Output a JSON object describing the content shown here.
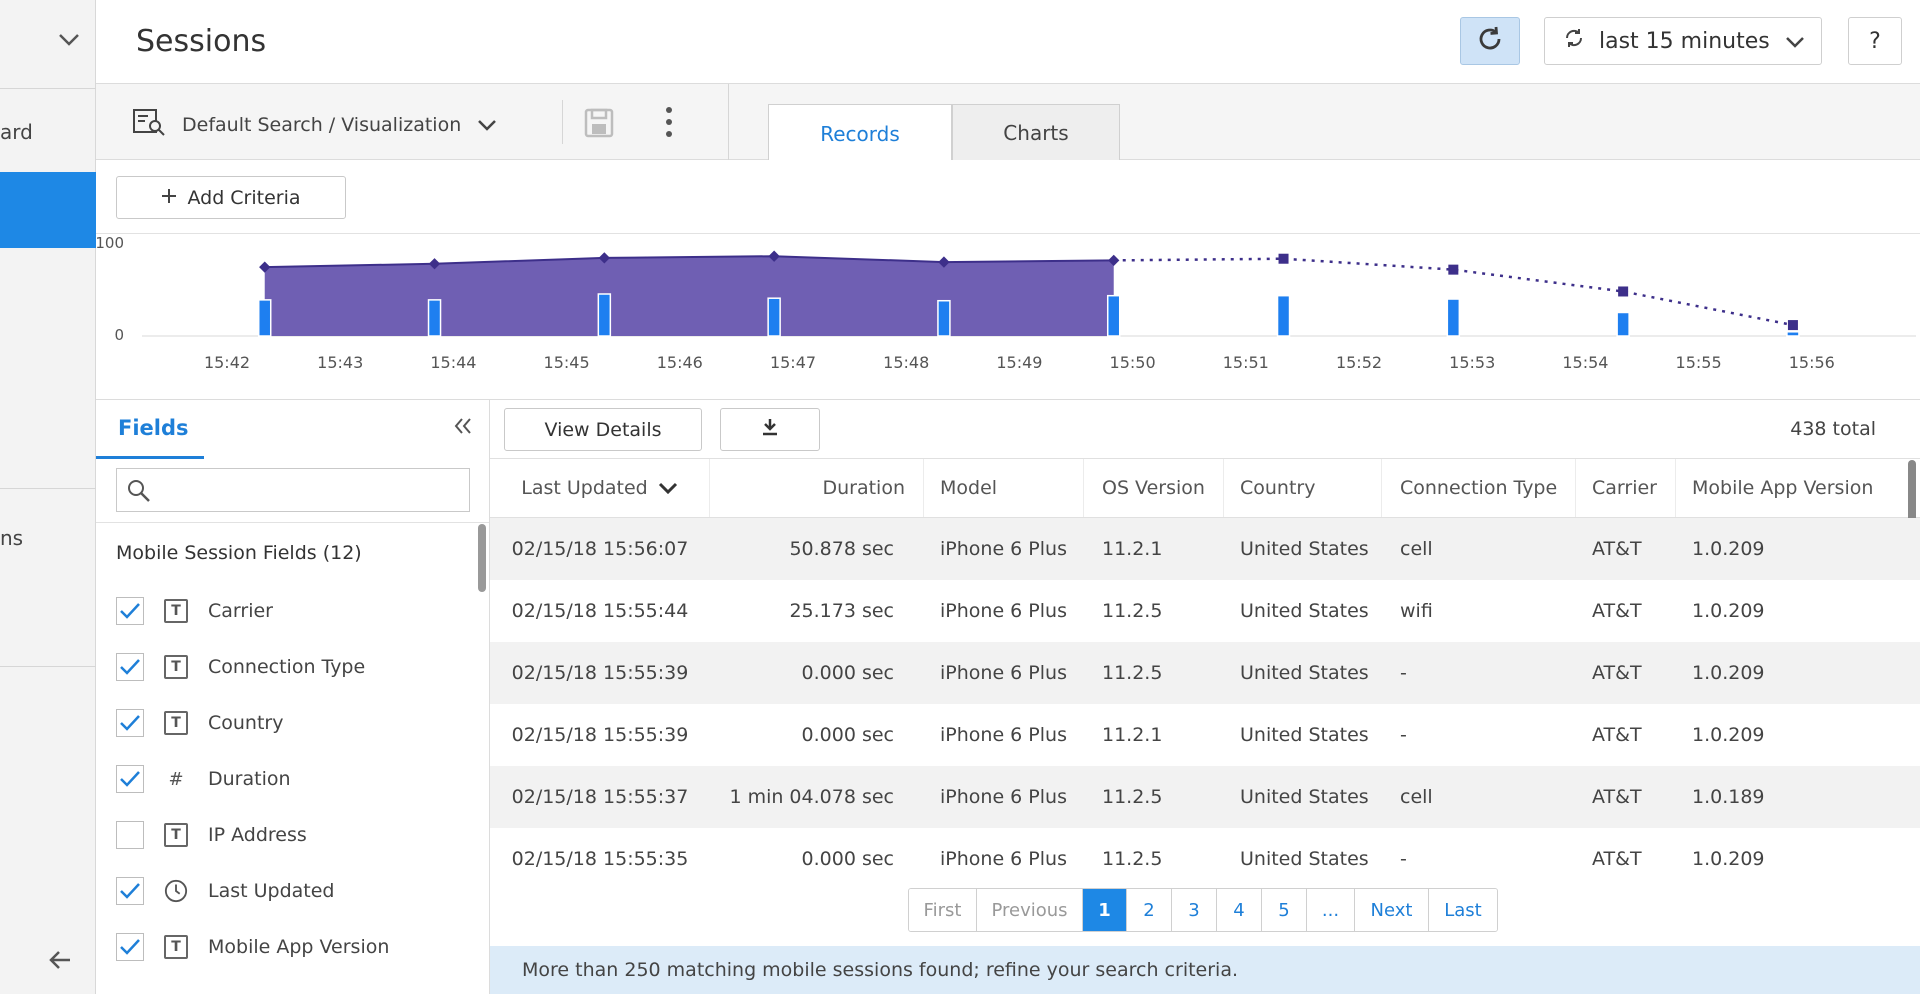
{
  "leftnav": {
    "items": [
      {
        "label": "ard"
      },
      {
        "label": "ns"
      }
    ],
    "chevron_icon": "chevron-down-icon",
    "back_icon": "arrow-left-icon"
  },
  "header": {
    "title": "Sessions",
    "refresh_icon": "refresh-icon",
    "time_range": "last 15 minutes",
    "help": "?"
  },
  "toolbar": {
    "search_label": "Default Search / Visualization",
    "tabs": [
      {
        "label": "Records",
        "active": true
      },
      {
        "label": "Charts",
        "active": false
      }
    ]
  },
  "criteria": {
    "add_label": "Add Criteria"
  },
  "chart_data": {
    "type": "area",
    "y_ticks": [
      "100",
      "0"
    ],
    "ylim": [
      0,
      100
    ],
    "x_ticks": [
      "15:42",
      "15:43",
      "15:44",
      "15:45",
      "15:46",
      "15:47",
      "15:48",
      "15:49",
      "15:50",
      "15:51",
      "15:52",
      "15:53",
      "15:54",
      "15:55",
      "15:56"
    ],
    "area_points": {
      "x": [
        "15:42:20",
        "15:43:50",
        "15:45:20",
        "15:46:50",
        "15:48:20",
        "15:49:50"
      ],
      "y": [
        82,
        86,
        93,
        95,
        88,
        90
      ]
    },
    "projection_points": {
      "x": [
        "15:49:50",
        "15:51:20",
        "15:52:50",
        "15:54:20",
        "15:55:50"
      ],
      "y": [
        90,
        92,
        79,
        53,
        13
      ]
    },
    "bars": {
      "x": [
        "15:42:20",
        "15:43:50",
        "15:45:20",
        "15:46:50",
        "15:48:20",
        "15:49:50",
        "15:51:20",
        "15:52:50",
        "15:54:20",
        "15:55:50"
      ],
      "y": [
        43,
        43,
        50,
        45,
        42,
        48,
        48,
        44,
        28,
        5
      ]
    },
    "colors": {
      "area": "#6f5fb3",
      "line": "#3d2f8a",
      "bar": "#1e7ff0"
    }
  },
  "fields": {
    "tab_label": "Fields",
    "collapse_icon": "double-chevron-left-icon",
    "search_placeholder": "",
    "group_title": "Mobile Session Fields (12)",
    "items": [
      {
        "label": "Carrier",
        "type": "T",
        "checked": true
      },
      {
        "label": "Connection Type",
        "type": "T",
        "checked": true
      },
      {
        "label": "Country",
        "type": "T",
        "checked": true
      },
      {
        "label": "Duration",
        "type": "#",
        "checked": true
      },
      {
        "label": "IP Address",
        "type": "T",
        "checked": false
      },
      {
        "label": "Last Updated",
        "type": "clock",
        "checked": true
      },
      {
        "label": "Mobile App Version",
        "type": "T",
        "checked": true
      }
    ]
  },
  "table": {
    "view_details": "View Details",
    "total": "438 total",
    "columns": [
      "Last Updated",
      "Duration",
      "Model",
      "OS Version",
      "Country",
      "Connection Type",
      "Carrier",
      "Mobile App Version"
    ],
    "rows": [
      [
        "02/15/18 15:56:07",
        "50.878 sec",
        "iPhone 6 Plus",
        "11.2.1",
        "United States",
        "cell",
        "AT&T",
        "1.0.209"
      ],
      [
        "02/15/18 15:55:44",
        "25.173 sec",
        "iPhone 6 Plus",
        "11.2.5",
        "United States",
        "wifi",
        "AT&T",
        "1.0.209"
      ],
      [
        "02/15/18 15:55:39",
        "0.000 sec",
        "iPhone 6 Plus",
        "11.2.5",
        "United States",
        "-",
        "AT&T",
        "1.0.209"
      ],
      [
        "02/15/18 15:55:39",
        "0.000 sec",
        "iPhone 6 Plus",
        "11.2.1",
        "United States",
        "-",
        "AT&T",
        "1.0.209"
      ],
      [
        "02/15/18 15:55:37",
        "1 min 04.078 sec",
        "iPhone 6 Plus",
        "11.2.5",
        "United States",
        "cell",
        "AT&T",
        "1.0.189"
      ],
      [
        "02/15/18 15:55:35",
        "0.000 sec",
        "iPhone 6 Plus",
        "11.2.5",
        "United States",
        "-",
        "AT&T",
        "1.0.209"
      ]
    ]
  },
  "pagination": {
    "first": "First",
    "previous": "Previous",
    "pages": [
      "1",
      "2",
      "3",
      "4",
      "5",
      "..."
    ],
    "current": "1",
    "next": "Next",
    "last": "Last"
  },
  "notice": "More than 250 matching mobile sessions found; refine your search criteria."
}
